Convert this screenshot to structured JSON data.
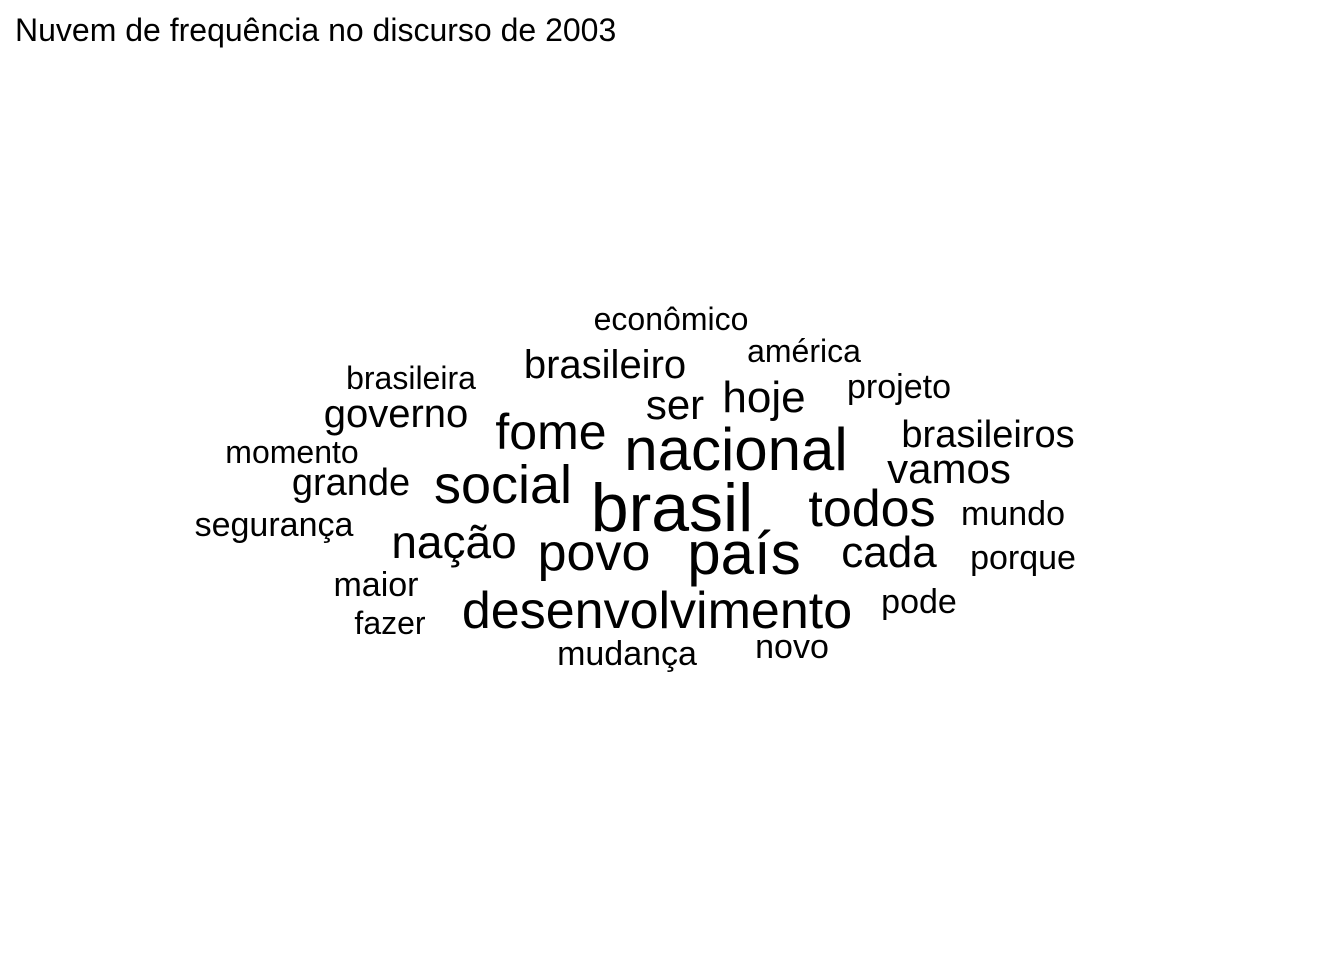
{
  "chart_data": {
    "type": "wordcloud",
    "title": "Nuvem de frequência no discurso de 2003",
    "words": [
      {
        "text": "brasil",
        "size": 10
      },
      {
        "text": "país",
        "size": 9
      },
      {
        "text": "nacional",
        "size": 8
      },
      {
        "text": "todos",
        "size": 7
      },
      {
        "text": "social",
        "size": 7
      },
      {
        "text": "povo",
        "size": 7
      },
      {
        "text": "desenvolvimento",
        "size": 7
      },
      {
        "text": "fome",
        "size": 6
      },
      {
        "text": "nação",
        "size": 6
      },
      {
        "text": "cada",
        "size": 6
      },
      {
        "text": "hoje",
        "size": 6
      },
      {
        "text": "vamos",
        "size": 6
      },
      {
        "text": "ser",
        "size": 5
      },
      {
        "text": "brasileiro",
        "size": 5
      },
      {
        "text": "governo",
        "size": 5
      },
      {
        "text": "brasileiros",
        "size": 5
      },
      {
        "text": "grande",
        "size": 5
      },
      {
        "text": "projeto",
        "size": 4
      },
      {
        "text": "mundo",
        "size": 4
      },
      {
        "text": "porque",
        "size": 4
      },
      {
        "text": "segurança",
        "size": 4
      },
      {
        "text": "maior",
        "size": 4
      },
      {
        "text": "pode",
        "size": 4
      },
      {
        "text": "mudança",
        "size": 4
      },
      {
        "text": "novo",
        "size": 4
      },
      {
        "text": "econômico",
        "size": 4
      },
      {
        "text": "américa",
        "size": 4
      },
      {
        "text": "brasileira",
        "size": 4
      },
      {
        "text": "momento",
        "size": 4
      },
      {
        "text": "fazer",
        "size": 4
      }
    ]
  }
}
